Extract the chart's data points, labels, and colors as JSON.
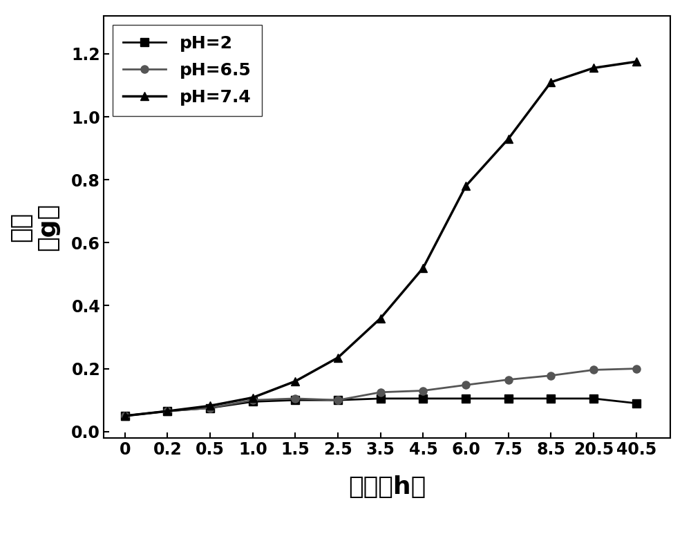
{
  "x_indices": [
    0,
    1,
    2,
    3,
    4,
    5,
    6,
    7,
    8,
    9,
    10,
    11,
    12
  ],
  "x_tick_labels": [
    "0",
    "0.2",
    "0.5",
    "1.0",
    "1.5",
    "2.5",
    "3.5",
    "4.5",
    "6.0",
    "7.5",
    "8.5",
    "20.5",
    "40.5"
  ],
  "ph2_y": [
    0.05,
    0.065,
    0.075,
    0.095,
    0.1,
    0.1,
    0.105,
    0.105,
    0.105,
    0.105,
    0.105,
    0.105,
    0.09
  ],
  "ph65_y": [
    0.05,
    0.065,
    0.075,
    0.1,
    0.105,
    0.1,
    0.125,
    0.13,
    0.148,
    0.165,
    0.178,
    0.196,
    0.2
  ],
  "ph74_y": [
    0.05,
    0.065,
    0.082,
    0.108,
    0.16,
    0.235,
    0.36,
    0.52,
    0.78,
    0.93,
    1.11,
    1.155,
    1.175
  ],
  "ylim": [
    -0.02,
    1.32
  ],
  "xlim": [
    -0.5,
    12.8
  ],
  "y_ticks": [
    0.0,
    0.2,
    0.4,
    0.6,
    0.8,
    1.0,
    1.2
  ],
  "ylabel_line1": "质量",
  "ylabel_line2": "（g）",
  "xlabel": "时间（h）",
  "legend_labels": [
    "pH=2",
    "pH=6.5",
    "pH=7.4"
  ],
  "line_color_ph2": "#000000",
  "line_color_ph65": "#555555",
  "line_color_ph74": "#000000",
  "marker_ph2": "s",
  "marker_ph65": "o",
  "marker_ph74": "^",
  "background_color": "#ffffff",
  "label_fontsize": 26,
  "tick_fontsize": 17,
  "legend_fontsize": 18
}
